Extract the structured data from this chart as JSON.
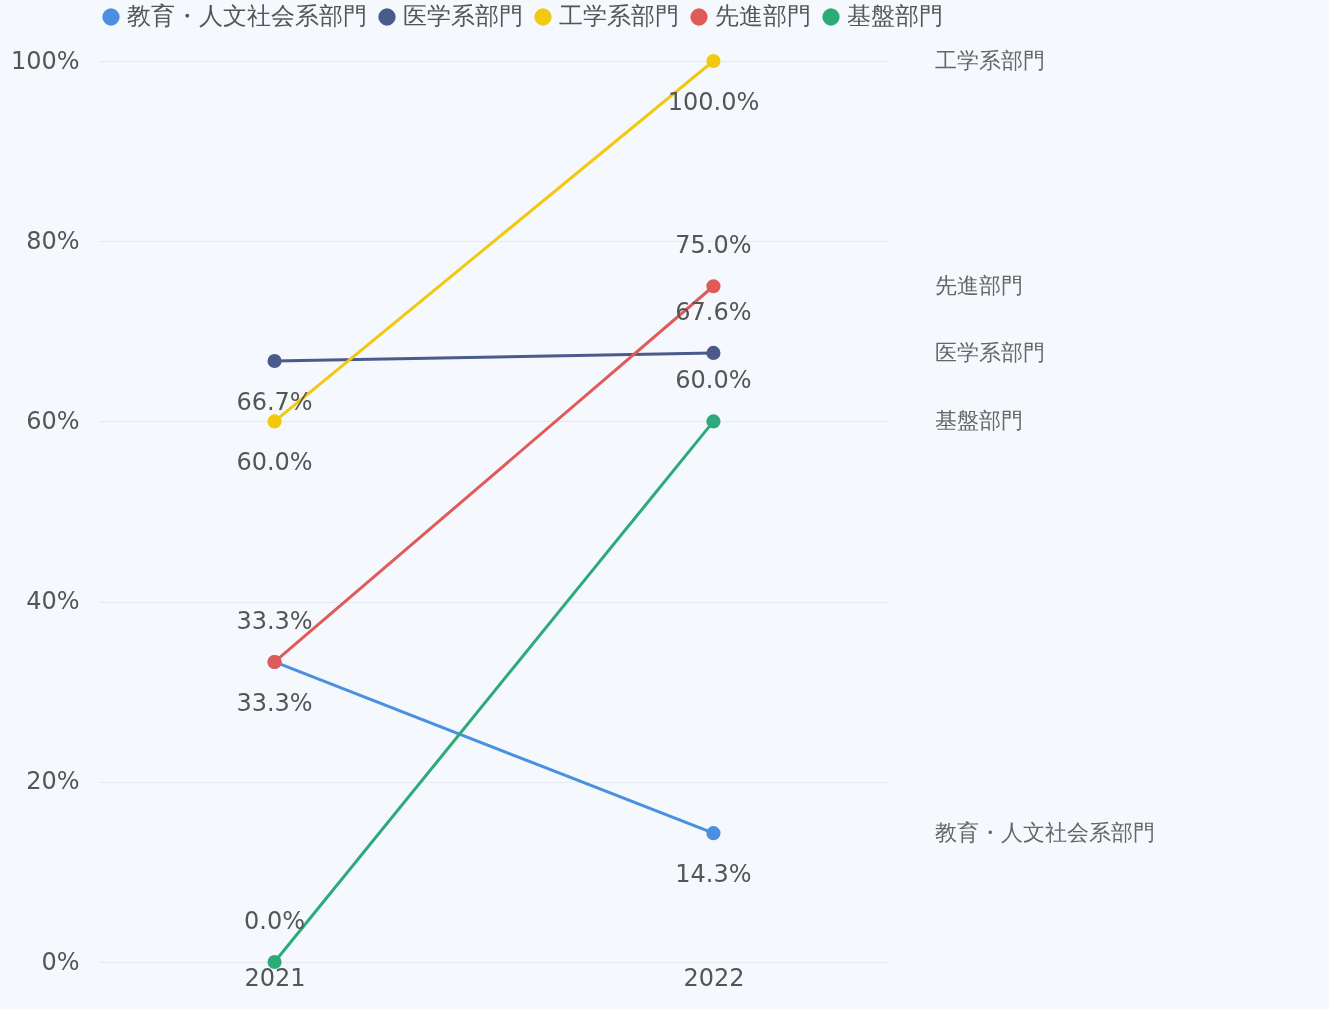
{
  "chart_data": {
    "type": "line",
    "categories": [
      "2021",
      "2022"
    ],
    "series": [
      {
        "name": "教育・人文社会系部門",
        "color": "#4a8fe0",
        "values": [
          33.3,
          14.3
        ],
        "value_labels": [
          "33.3%",
          "14.3%"
        ]
      },
      {
        "name": "医学系部門",
        "color": "#4a5a8a",
        "values": [
          66.7,
          67.6
        ],
        "value_labels": [
          "66.7%",
          "67.6%"
        ]
      },
      {
        "name": "工学系部門",
        "color": "#f2c811",
        "values": [
          60.0,
          100.0
        ],
        "value_labels": [
          "60.0%",
          "100.0%"
        ]
      },
      {
        "name": "先進部門",
        "color": "#e05a5a",
        "values": [
          33.3,
          75.0
        ],
        "value_labels": [
          "33.3%",
          "75.0%"
        ]
      },
      {
        "name": "基盤部門",
        "color": "#2daa7a",
        "values": [
          0.0,
          60.0
        ],
        "value_labels": [
          "0.0%",
          "60.0%"
        ]
      }
    ],
    "ylim": [
      0,
      100
    ],
    "yticks": [
      {
        "value": 0,
        "label": "0%"
      },
      {
        "value": 20,
        "label": "20%"
      },
      {
        "value": 40,
        "label": "40%"
      },
      {
        "value": 60,
        "label": "60%"
      },
      {
        "value": 80,
        "label": "80%"
      },
      {
        "value": 100,
        "label": "100%"
      }
    ],
    "grid": "y",
    "legend": "top",
    "marker": "circle",
    "line_style": "solid"
  }
}
